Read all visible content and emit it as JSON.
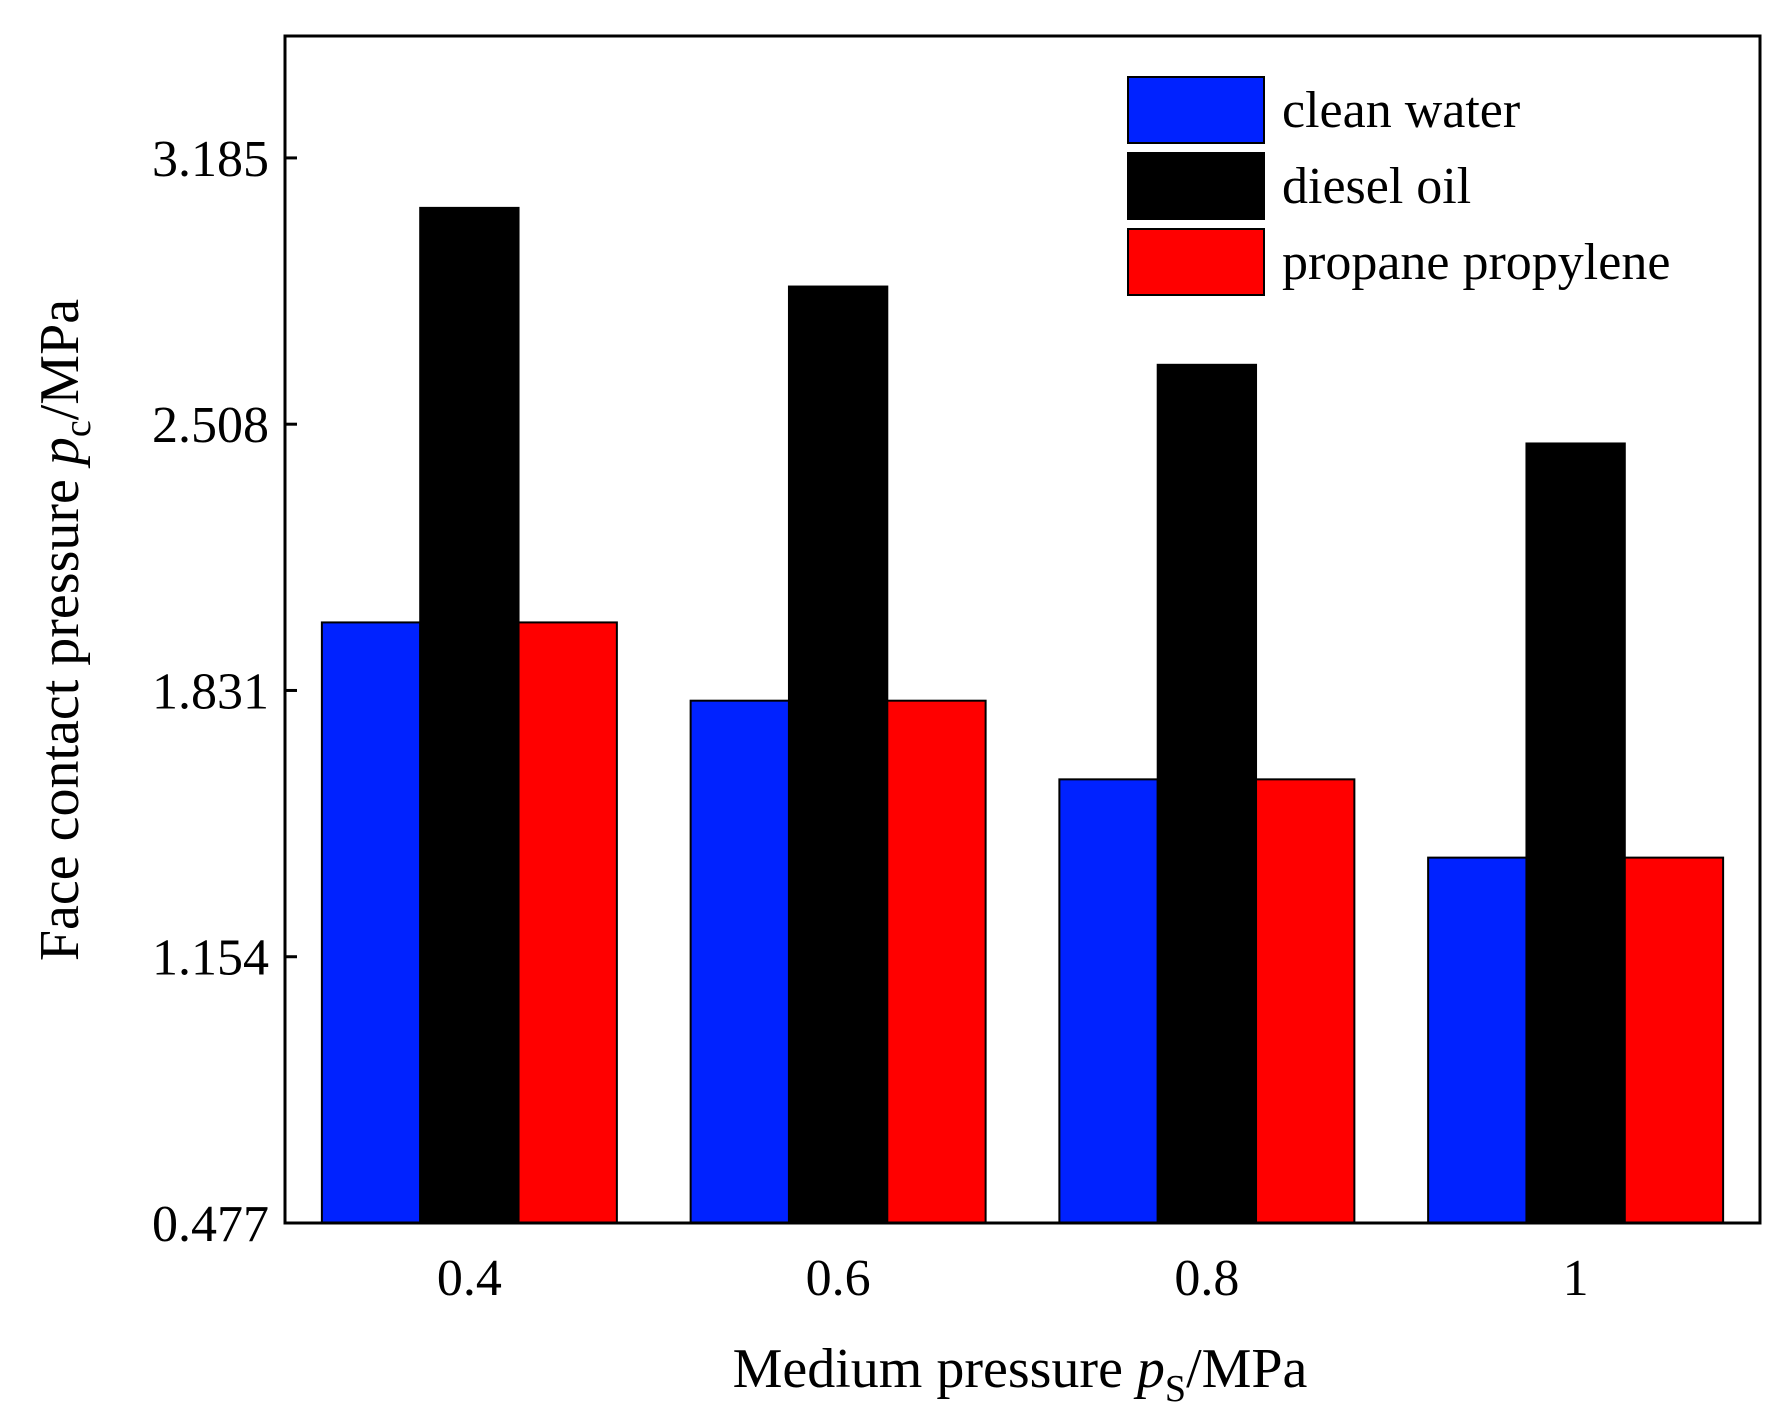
{
  "chart_data": {
    "type": "bar",
    "xlabel": {
      "main": "Medium pressure ",
      "var": "p",
      "sub": "S",
      "unit": "/MPa"
    },
    "ylabel": {
      "main": "Face contact pressure ",
      "var": "p",
      "sub": "c",
      "unit": "/MPa"
    },
    "categories": [
      "0.4",
      "0.6",
      "0.8",
      "1"
    ],
    "ylim": [
      0.477,
      3.495
    ],
    "yticks": [
      0.477,
      1.154,
      1.831,
      2.508,
      3.185
    ],
    "ytick_labels": [
      "0.477",
      "1.154",
      "1.831",
      "2.508",
      "3.185"
    ],
    "legend_position": "top-right",
    "grid": false,
    "series": [
      {
        "name": "clean water",
        "color": "#0022ff",
        "values": [
          2.004,
          1.805,
          1.605,
          1.406
        ]
      },
      {
        "name": "diesel oil",
        "color": "#000000",
        "values": [
          3.058,
          2.858,
          2.659,
          2.459
        ]
      },
      {
        "name": "propane propylene",
        "color": "#ff0000",
        "values": [
          2.004,
          1.805,
          1.605,
          1.406
        ]
      }
    ]
  }
}
